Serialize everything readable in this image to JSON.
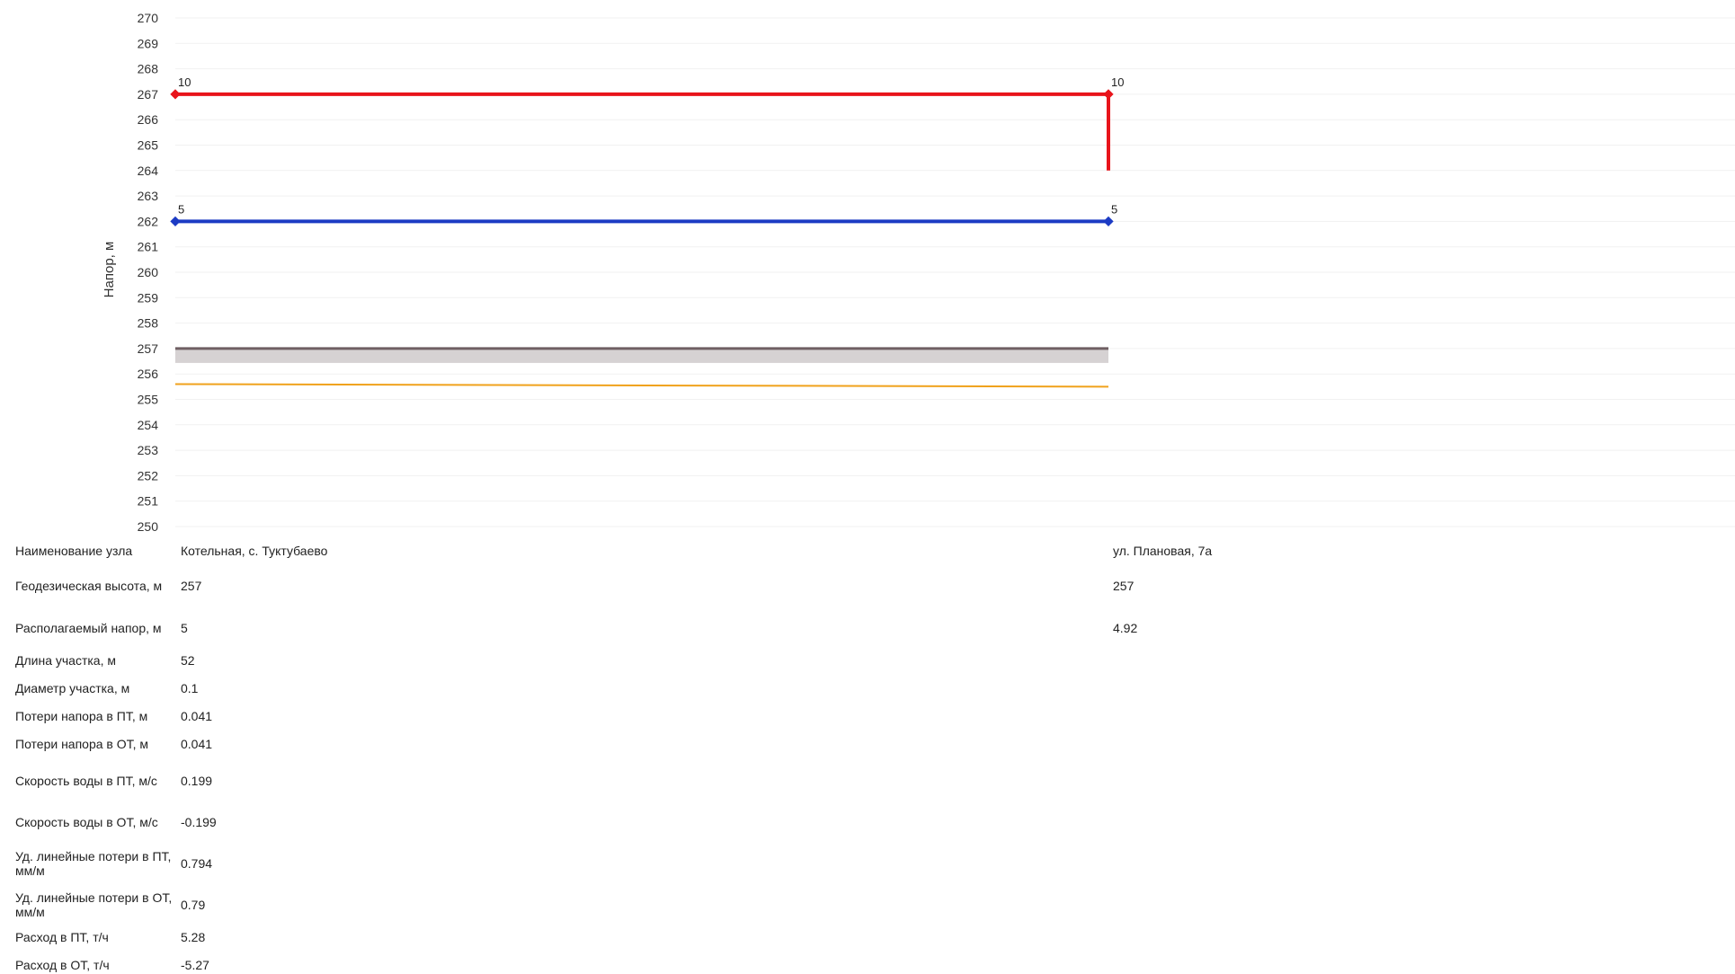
{
  "chart_data": {
    "type": "line",
    "ylabel": "Напор, м",
    "ylim": [
      250,
      270
    ],
    "yticks": [
      250,
      251,
      252,
      253,
      254,
      255,
      256,
      257,
      258,
      259,
      260,
      261,
      262,
      263,
      264,
      265,
      266,
      267,
      268,
      269,
      270
    ],
    "nodes": [
      "Котельная, с. Туктубаево",
      "ул. Плановая, 7а"
    ],
    "series": [
      {
        "key": "supply",
        "color": "#e8141b",
        "values": [
          267,
          267
        ],
        "point_labels": [
          "10",
          "10"
        ],
        "drop_to": 264
      },
      {
        "key": "return",
        "color": "#1c3bc4",
        "values": [
          262,
          262
        ],
        "point_labels": [
          "5",
          "5"
        ]
      },
      {
        "key": "ground",
        "color": "#6f5f63",
        "values": [
          257,
          257
        ]
      },
      {
        "key": "orange",
        "color": "#f0a21c",
        "values": [
          255.6,
          255.5
        ]
      }
    ],
    "ground_fill_color": "#d6d2d3",
    "grid": true
  },
  "table": {
    "rows": [
      {
        "label": "Наименование узла",
        "v1": "Котельная, с. Туктубаево",
        "v2": "ул. Плановая, 7а"
      },
      {
        "label": "Геодезическая высота, м",
        "v1": "257",
        "v2": "257"
      },
      {
        "label": "Располагаемый напор, м",
        "v1": "5",
        "v2": "4.92"
      },
      {
        "label": "Длина участка, м",
        "v1": "52",
        "v2": ""
      },
      {
        "label": "Диаметр участка, м",
        "v1": "0.1",
        "v2": ""
      },
      {
        "label": "Потери напора в ПТ, м",
        "v1": "0.041",
        "v2": ""
      },
      {
        "label": "Потери напора в ОТ, м",
        "v1": "0.041",
        "v2": ""
      },
      {
        "label": "Скорость воды в ПТ, м/с",
        "v1": "0.199",
        "v2": ""
      },
      {
        "label": "Скорость воды в ОТ, м/с",
        "v1": "-0.199",
        "v2": ""
      },
      {
        "label": "Уд. линейные потери в ПТ, мм/м",
        "v1": "0.794",
        "v2": ""
      },
      {
        "label": "Уд. линейные потери в ОТ, мм/м",
        "v1": "0.79",
        "v2": ""
      },
      {
        "label": "Расход в ПТ, т/ч",
        "v1": "5.28",
        "v2": ""
      },
      {
        "label": "Расход в ОТ, т/ч",
        "v1": "-5.27",
        "v2": ""
      }
    ]
  }
}
